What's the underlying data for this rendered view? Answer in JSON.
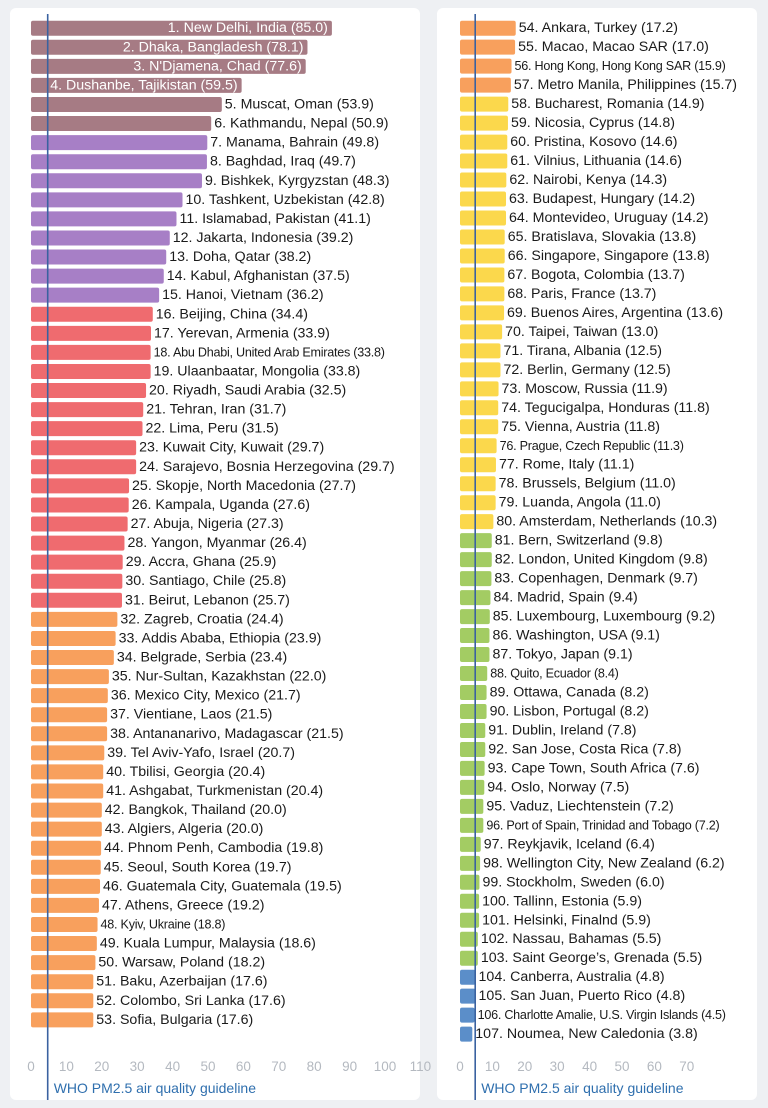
{
  "guideline_label": "WHO PM2.5 air quality guideline",
  "colors": {
    "mauve": "#a67b84",
    "purple": "#a77fc6",
    "red": "#ef6b6f",
    "orange": "#f8a05d",
    "yellow": "#fbd84c",
    "green": "#a3cc63",
    "blue": "#5b8ec9",
    "guideline": "#3a62a0"
  },
  "chart_data": [
    {
      "type": "bar",
      "orientation": "horizontal",
      "guideline_value": 5,
      "xlim": [
        0,
        110
      ],
      "xticks": [
        "0",
        "10",
        "20",
        "30",
        "40",
        "50",
        "60",
        "70",
        "80",
        "90",
        "100",
        "110"
      ],
      "bars": [
        {
          "label": "1. New Delhi, India (85.0)",
          "value": 85.0,
          "color": "mauve"
        },
        {
          "label": "2. Dhaka, Bangladesh (78.1)",
          "value": 78.1,
          "color": "mauve"
        },
        {
          "label": "3. N'Djamena, Chad  (77.6)",
          "value": 77.6,
          "color": "mauve"
        },
        {
          "label": "4. Dushanbe, Tajikistan (59.5)",
          "value": 59.5,
          "color": "mauve"
        },
        {
          "label": "5. Muscat, Oman (53.9)",
          "value": 53.9,
          "color": "mauve"
        },
        {
          "label": "6. Kathmandu, Nepal (50.9)",
          "value": 50.9,
          "color": "mauve"
        },
        {
          "label": "7. Manama, Bahrain (49.8)",
          "value": 49.8,
          "color": "purple"
        },
        {
          "label": "8. Baghdad, Iraq (49.7)",
          "value": 49.7,
          "color": "purple"
        },
        {
          "label": "9. Bishkek, Kyrgyzstan (48.3)",
          "value": 48.3,
          "color": "purple"
        },
        {
          "label": "10. Tashkent, Uzbekistan (42.8)",
          "value": 42.8,
          "color": "purple"
        },
        {
          "label": "11. Islamabad, Pakistan (41.1)",
          "value": 41.1,
          "color": "purple"
        },
        {
          "label": "12. Jakarta, Indonesia (39.2)",
          "value": 39.2,
          "color": "purple"
        },
        {
          "label": "13. Doha, Qatar (38.2)",
          "value": 38.2,
          "color": "purple"
        },
        {
          "label": "14. Kabul, Afghanistan (37.5)",
          "value": 37.5,
          "color": "purple"
        },
        {
          "label": "15. Hanoi, Vietnam (36.2)",
          "value": 36.2,
          "color": "purple"
        },
        {
          "label": "16. Beijing, China (34.4)",
          "value": 34.4,
          "color": "red"
        },
        {
          "label": "17. Yerevan, Armenia (33.9)",
          "value": 33.9,
          "color": "red"
        },
        {
          "label": "18. Abu Dhabi, United Arab Emirates (33.8)",
          "value": 33.8,
          "color": "red",
          "condensed": true
        },
        {
          "label": "19. Ulaanbaatar, Mongolia (33.8)",
          "value": 33.8,
          "color": "red"
        },
        {
          "label": "20. Riyadh, Saudi Arabia (32.5)",
          "value": 32.5,
          "color": "red"
        },
        {
          "label": "21. Tehran, Iran (31.7)",
          "value": 31.7,
          "color": "red"
        },
        {
          "label": "22. Lima, Peru (31.5)",
          "value": 31.5,
          "color": "red"
        },
        {
          "label": "23. Kuwait City, Kuwait (29.7)",
          "value": 29.7,
          "color": "red"
        },
        {
          "label": "24. Sarajevo, Bosnia Herzegovina (29.7)",
          "value": 29.7,
          "color": "red"
        },
        {
          "label": "25. Skopje, North Macedonia (27.7)",
          "value": 27.7,
          "color": "red"
        },
        {
          "label": "26. Kampala, Uganda (27.6)",
          "value": 27.6,
          "color": "red"
        },
        {
          "label": "27. Abuja, Nigeria (27.3)",
          "value": 27.3,
          "color": "red"
        },
        {
          "label": "28. Yangon, Myanmar (26.4)",
          "value": 26.4,
          "color": "red"
        },
        {
          "label": "29. Accra, Ghana (25.9)",
          "value": 25.9,
          "color": "red"
        },
        {
          "label": "30. Santiago, Chile (25.8)",
          "value": 25.8,
          "color": "red"
        },
        {
          "label": "31. Beirut, Lebanon (25.7)",
          "value": 25.7,
          "color": "red"
        },
        {
          "label": "32. Zagreb, Croatia (24.4)",
          "value": 24.4,
          "color": "orange"
        },
        {
          "label": "33. Addis Ababa, Ethiopia (23.9)",
          "value": 23.9,
          "color": "orange"
        },
        {
          "label": "34. Belgrade, Serbia (23.4)",
          "value": 23.4,
          "color": "orange"
        },
        {
          "label": "35. Nur-Sultan, Kazakhstan (22.0)",
          "value": 22.0,
          "color": "orange"
        },
        {
          "label": "36. Mexico City, Mexico (21.7)",
          "value": 21.7,
          "color": "orange"
        },
        {
          "label": "37. Vientiane, Laos (21.5)",
          "value": 21.5,
          "color": "orange"
        },
        {
          "label": "38. Antananarivo, Madagascar (21.5)",
          "value": 21.5,
          "color": "orange"
        },
        {
          "label": "39. Tel Aviv-Yafo, Israel (20.7)",
          "value": 20.7,
          "color": "orange"
        },
        {
          "label": "40. Tbilisi, Georgia (20.4)",
          "value": 20.4,
          "color": "orange"
        },
        {
          "label": "41. Ashgabat, Turkmenistan (20.4)",
          "value": 20.4,
          "color": "orange"
        },
        {
          "label": "42. Bangkok, Thailand (20.0)",
          "value": 20.0,
          "color": "orange"
        },
        {
          "label": "43. Algiers, Algeria (20.0)",
          "value": 20.0,
          "color": "orange"
        },
        {
          "label": "44. Phnom Penh, Cambodia (19.8)",
          "value": 19.8,
          "color": "orange"
        },
        {
          "label": "45. Seoul, South Korea (19.7)",
          "value": 19.7,
          "color": "orange"
        },
        {
          "label": "46. Guatemala City, Guatemala (19.5)",
          "value": 19.5,
          "color": "orange"
        },
        {
          "label": "47. Athens, Greece (19.2)",
          "value": 19.2,
          "color": "orange"
        },
        {
          "label": "48. Kyiv, Ukraine (18.8)",
          "value": 18.8,
          "color": "orange",
          "condensed": true
        },
        {
          "label": "49. Kuala Lumpur, Malaysia (18.6)",
          "value": 18.6,
          "color": "orange"
        },
        {
          "label": "50. Warsaw, Poland (18.2)",
          "value": 18.2,
          "color": "orange"
        },
        {
          "label": "51. Baku, Azerbaijan (17.6)",
          "value": 17.6,
          "color": "orange"
        },
        {
          "label": "52. Colombo, Sri Lanka (17.6)",
          "value": 17.6,
          "color": "orange"
        },
        {
          "label": "53. Sofia, Bulgaria (17.6)",
          "value": 17.6,
          "color": "orange"
        }
      ]
    },
    {
      "type": "bar",
      "orientation": "horizontal",
      "guideline_value": 5,
      "xlim": [
        0,
        75
      ],
      "xticks": [
        "0",
        "10",
        "20",
        "30",
        "40",
        "50",
        "60",
        "70"
      ],
      "bars": [
        {
          "label": "54. Ankara, Turkey (17.2)",
          "value": 17.2,
          "color": "orange"
        },
        {
          "label": "55. Macao, Macao SAR (17.0)",
          "value": 17.0,
          "color": "orange"
        },
        {
          "label": "56. Hong Kong, Hong Kong SAR (15.9)",
          "value": 15.9,
          "color": "orange",
          "condensed": true
        },
        {
          "label": "57. Metro Manila, Philippines (15.7)",
          "value": 15.7,
          "color": "orange"
        },
        {
          "label": "58. Bucharest, Romania (14.9)",
          "value": 14.9,
          "color": "yellow"
        },
        {
          "label": "59. Nicosia, Cyprus (14.8)",
          "value": 14.8,
          "color": "yellow"
        },
        {
          "label": "60. Pristina, Kosovo (14.6)",
          "value": 14.6,
          "color": "yellow"
        },
        {
          "label": "61. Vilnius, Lithuania (14.6)",
          "value": 14.6,
          "color": "yellow"
        },
        {
          "label": "62. Nairobi, Kenya (14.3)",
          "value": 14.3,
          "color": "yellow"
        },
        {
          "label": "63. Budapest, Hungary (14.2)",
          "value": 14.2,
          "color": "yellow"
        },
        {
          "label": "64. Montevideo, Uruguay (14.2)",
          "value": 14.2,
          "color": "yellow"
        },
        {
          "label": "65. Bratislava, Slovakia (13.8)",
          "value": 13.8,
          "color": "yellow"
        },
        {
          "label": "66. Singapore, Singapore (13.8)",
          "value": 13.8,
          "color": "yellow"
        },
        {
          "label": "67. Bogota, Colombia (13.7)",
          "value": 13.7,
          "color": "yellow"
        },
        {
          "label": "68. Paris, France (13.7)",
          "value": 13.7,
          "color": "yellow"
        },
        {
          "label": "69. Buenos Aires, Argentina (13.6)",
          "value": 13.6,
          "color": "yellow"
        },
        {
          "label": "70. Taipei, Taiwan (13.0)",
          "value": 13.0,
          "color": "yellow"
        },
        {
          "label": "71. Tirana, Albania (12.5)",
          "value": 12.5,
          "color": "yellow"
        },
        {
          "label": "72. Berlin, Germany (12.5)",
          "value": 12.5,
          "color": "yellow"
        },
        {
          "label": "73. Moscow, Russia (11.9)",
          "value": 11.9,
          "color": "yellow"
        },
        {
          "label": "74. Tegucigalpa, Honduras (11.8)",
          "value": 11.8,
          "color": "yellow"
        },
        {
          "label": "75. Vienna, Austria (11.8)",
          "value": 11.8,
          "color": "yellow"
        },
        {
          "label": "76. Prague, Czech Republic (11.3)",
          "value": 11.3,
          "color": "yellow",
          "condensed": true
        },
        {
          "label": "77. Rome, Italy (11.1)",
          "value": 11.1,
          "color": "yellow"
        },
        {
          "label": "78. Brussels, Belgium (11.0)",
          "value": 11.0,
          "color": "yellow"
        },
        {
          "label": "79. Luanda, Angola (11.0)",
          "value": 11.0,
          "color": "yellow"
        },
        {
          "label": "80. Amsterdam, Netherlands (10.3)",
          "value": 10.3,
          "color": "yellow"
        },
        {
          "label": "81. Bern, Switzerland (9.8)",
          "value": 9.8,
          "color": "green"
        },
        {
          "label": "82. London, United Kingdom (9.8)",
          "value": 9.8,
          "color": "green"
        },
        {
          "label": "83. Copenhagen, Denmark (9.7)",
          "value": 9.7,
          "color": "green"
        },
        {
          "label": "84. Madrid, Spain (9.4)",
          "value": 9.4,
          "color": "green"
        },
        {
          "label": "85. Luxembourg, Luxembourg (9.2)",
          "value": 9.2,
          "color": "green"
        },
        {
          "label": "86. Washington, USA (9.1)",
          "value": 9.1,
          "color": "green"
        },
        {
          "label": "87. Tokyo, Japan (9.1)",
          "value": 9.1,
          "color": "green"
        },
        {
          "label": "88. Quito, Ecuador (8.4)",
          "value": 8.4,
          "color": "green",
          "condensed": true
        },
        {
          "label": "89. Ottawa, Canada (8.2)",
          "value": 8.2,
          "color": "green"
        },
        {
          "label": "90. Lisbon, Portugal (8.2)",
          "value": 8.2,
          "color": "green"
        },
        {
          "label": "91. Dublin, Ireland (7.8)",
          "value": 7.8,
          "color": "green"
        },
        {
          "label": "92. San Jose, Costa Rica (7.8)",
          "value": 7.8,
          "color": "green"
        },
        {
          "label": "93. Cape Town, South Africa (7.6)",
          "value": 7.6,
          "color": "green"
        },
        {
          "label": "94. Oslo, Norway (7.5)",
          "value": 7.5,
          "color": "green"
        },
        {
          "label": "95. Vaduz, Liechtenstein (7.2)",
          "value": 7.2,
          "color": "green"
        },
        {
          "label": "96. Port of Spain, Trinidad and Tobago (7.2)",
          "value": 7.2,
          "color": "green",
          "condensed": true
        },
        {
          "label": "97. Reykjavik, Iceland (6.4)",
          "value": 6.4,
          "color": "green"
        },
        {
          "label": "98. Wellington City, New Zealand (6.2)",
          "value": 6.2,
          "color": "green"
        },
        {
          "label": "99. Stockholm, Sweden (6.0)",
          "value": 6.0,
          "color": "green"
        },
        {
          "label": "100. Tallinn, Estonia (5.9)",
          "value": 5.9,
          "color": "green"
        },
        {
          "label": "101. Helsinki, Finalnd (5.9)",
          "value": 5.9,
          "color": "green"
        },
        {
          "label": "102. Nassau, Bahamas (5.5)",
          "value": 5.5,
          "color": "green"
        },
        {
          "label": "103. Saint George’s, Grenada (5.5)",
          "value": 5.5,
          "color": "green"
        },
        {
          "label": "104. Canberra, Australia (4.8)",
          "value": 4.8,
          "color": "blue"
        },
        {
          "label": "105. San Juan, Puerto Rico (4.8)",
          "value": 4.8,
          "color": "blue"
        },
        {
          "label": "106. Charlotte Amalie, U.S. Virgin Islands (4.5)",
          "value": 4.5,
          "color": "blue",
          "condensed": true
        },
        {
          "label": "107. Noumea, New Caledonia (3.8)",
          "value": 3.8,
          "color": "blue"
        }
      ]
    }
  ]
}
